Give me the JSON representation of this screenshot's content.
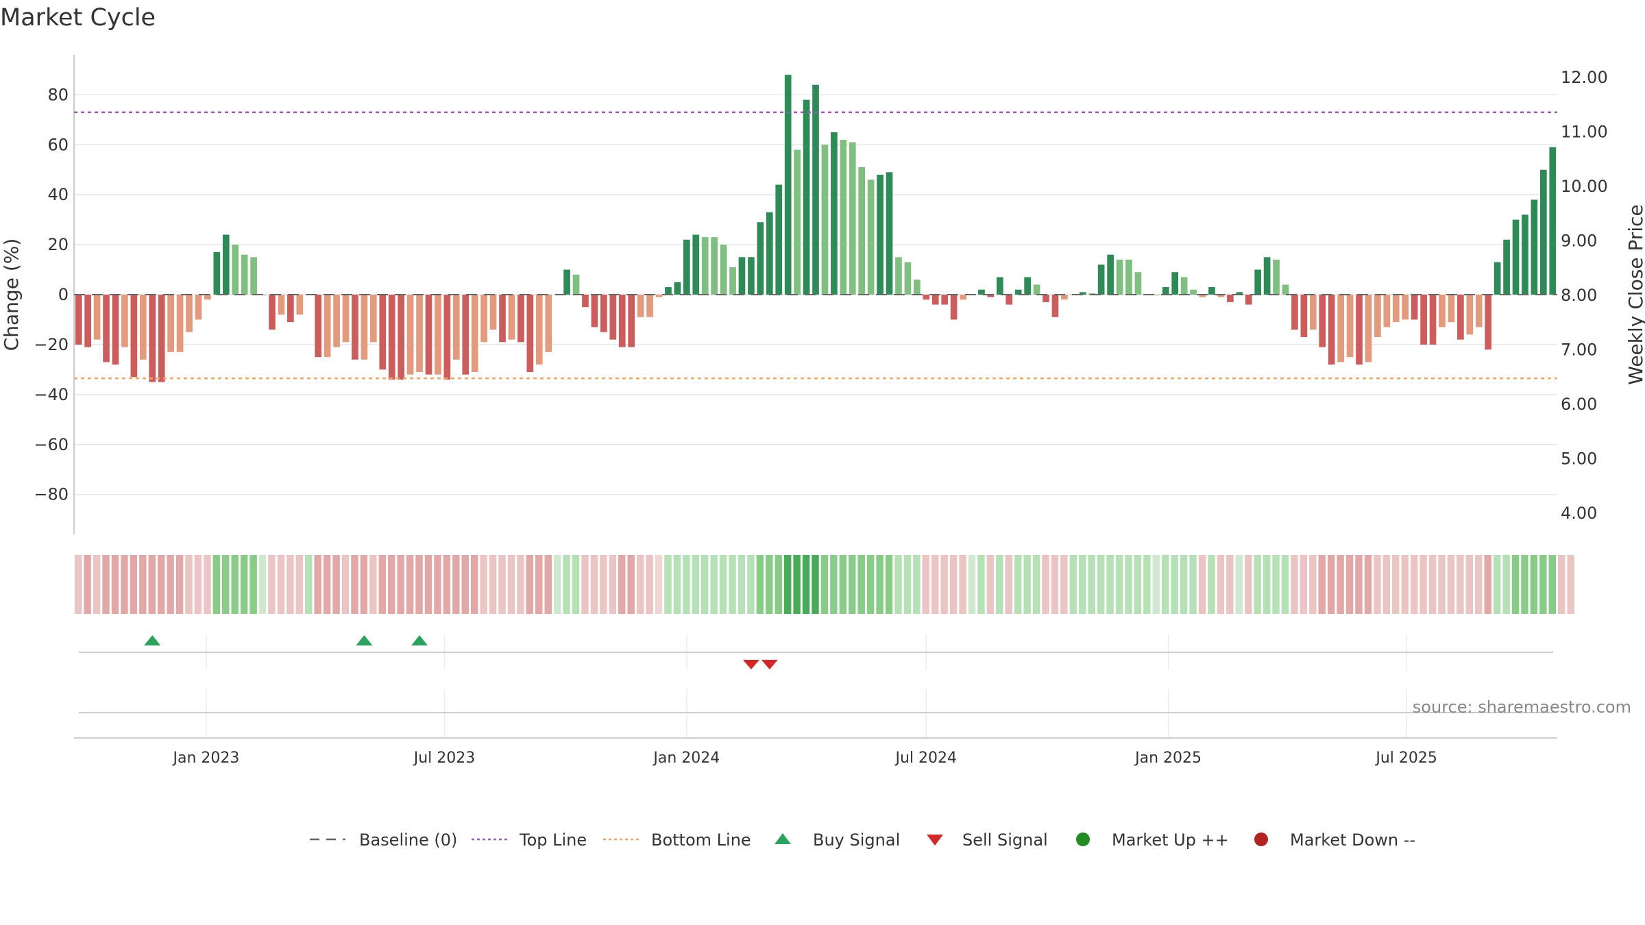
{
  "title": "Market Cycle",
  "source_note": "source: sharemaestro.com",
  "colors": {
    "strong_up": "#2e8b57",
    "weak_up": "#7fbf7f",
    "weak_down": "#e39a7d",
    "strong_down": "#cd5c5c",
    "top_line": "#9b59b6",
    "bottom_line": "#f4a460",
    "buy": "#2ca25f",
    "sell": "#d62728",
    "market_up": "#228b22",
    "market_down": "#b22222",
    "baseline": "#666666",
    "grid": "#e6e6e6"
  },
  "legend": [
    {
      "label": "Baseline (0)",
      "icon": "dash-line"
    },
    {
      "label": "Top Line",
      "icon": "dotted-purple-line"
    },
    {
      "label": "Bottom Line",
      "icon": "dotted-orange-line"
    },
    {
      "label": "Buy Signal",
      "icon": "triangle-up"
    },
    {
      "label": "Sell Signal",
      "icon": "triangle-down"
    },
    {
      "label": "Market Up ++",
      "icon": "circle-green"
    },
    {
      "label": "Market Down --",
      "icon": "circle-red"
    }
  ],
  "chart_data": {
    "type": "bar",
    "title": "Market Cycle",
    "ylabel": "Change (%)",
    "y2label": "Weekly Close Price",
    "ylim": [
      -96,
      96
    ],
    "yticks": [
      -80,
      -60,
      -40,
      -20,
      0,
      20,
      40,
      60,
      80
    ],
    "y2lim": [
      3.6,
      12.4
    ],
    "y2ticks": [
      "4.00",
      "5.00",
      "6.00",
      "7.00",
      "8.00",
      "9.00",
      "10.00",
      "11.00",
      "12.00"
    ],
    "top_line": 73,
    "bottom_line": -33.5,
    "grid": true,
    "legend_position": "bottom",
    "x_start": "2022-09-26",
    "x_interval": "weekly",
    "x_ticks": [
      "Jan 2023",
      "Jul 2023",
      "Jan 2024",
      "Jul 2024",
      "Jan 2025",
      "Jul 2025"
    ],
    "series": [
      {
        "values": [
          -20,
          -21,
          -18,
          -27,
          -28,
          -21,
          -33,
          -26,
          -35,
          -35,
          -23,
          -23,
          -15,
          -10,
          -2,
          17,
          24,
          20,
          16,
          15,
          0,
          -14,
          -8,
          -11,
          -8,
          0,
          -25,
          -25,
          -21,
          -19,
          -26,
          -26,
          -19,
          -30,
          -34,
          -34,
          -32,
          -31,
          -32,
          -32,
          -34,
          -26,
          -32,
          -31,
          -19,
          -14,
          -19,
          -18,
          -19,
          -31,
          -28,
          -23,
          0,
          10,
          8,
          -5,
          -13,
          -15,
          -18,
          -21,
          -21,
          -9,
          -9,
          -1,
          3,
          5,
          22,
          24,
          23,
          23,
          20,
          11,
          15,
          15,
          29,
          33,
          44,
          88,
          58,
          78,
          84,
          60,
          65,
          62,
          61,
          51,
          46,
          48,
          49,
          15,
          13,
          6,
          -2,
          -4,
          -4,
          -10,
          -2,
          0,
          2,
          -1,
          7,
          -4,
          2,
          7,
          4,
          -3,
          -9,
          -2,
          0,
          1,
          0.5,
          12,
          16,
          14,
          14,
          9,
          0,
          0,
          3,
          9,
          7,
          2,
          -1,
          3,
          -1,
          -3,
          1,
          -4,
          10,
          15,
          14,
          4,
          -14,
          -17,
          -14,
          -21,
          -28,
          -27,
          -25,
          -28,
          -27,
          -17,
          -13,
          -11,
          -10,
          -10,
          -20,
          -20,
          -13,
          -11,
          -18,
          -16,
          -13,
          -22,
          13,
          22,
          30,
          32,
          38,
          50,
          59
        ],
        "tiers": [
          3,
          3,
          2,
          3,
          3,
          2,
          3,
          2,
          3,
          3,
          2,
          2,
          2,
          2,
          2,
          1,
          1,
          0,
          0,
          0,
          0,
          3,
          2,
          3,
          2,
          0,
          3,
          2,
          2,
          2,
          3,
          2,
          2,
          3,
          3,
          3,
          2,
          2,
          3,
          2,
          3,
          2,
          3,
          2,
          2,
          2,
          3,
          2,
          3,
          3,
          2,
          2,
          0,
          1,
          0,
          3,
          3,
          3,
          3,
          3,
          3,
          2,
          2,
          2,
          1,
          1,
          1,
          1,
          0,
          0,
          0,
          0,
          1,
          1,
          1,
          1,
          1,
          1,
          0,
          1,
          1,
          0,
          1,
          0,
          0,
          0,
          0,
          1,
          1,
          0,
          0,
          0,
          3,
          3,
          3,
          3,
          2,
          0,
          1,
          3,
          1,
          3,
          1,
          1,
          0,
          3,
          3,
          2,
          0,
          1,
          0,
          1,
          1,
          0,
          0,
          0,
          0,
          0,
          1,
          1,
          0,
          0,
          2,
          1,
          2,
          3,
          1,
          3,
          1,
          1,
          0,
          0,
          3,
          3,
          2,
          3,
          3,
          2,
          2,
          3,
          2,
          2,
          2,
          2,
          2,
          3,
          3,
          3,
          2,
          2,
          3,
          2,
          2,
          3,
          1,
          1,
          1,
          1,
          1,
          1,
          1
        ]
      }
    ],
    "heat_levels": [
      1,
      1,
      1,
      1,
      1,
      1,
      1,
      1,
      1,
      1,
      1,
      1,
      1,
      1,
      1,
      2,
      2,
      2,
      2,
      2,
      0,
      1,
      1,
      1,
      1,
      1,
      1,
      1,
      1,
      1,
      1,
      1,
      1,
      1,
      1,
      1,
      1,
      1,
      1,
      1,
      1,
      1,
      1,
      1,
      1,
      1,
      1,
      1,
      1,
      1,
      1,
      1,
      0,
      1,
      1,
      1,
      1,
      1,
      1,
      1,
      1,
      1,
      1,
      0,
      1,
      1,
      1,
      1,
      1,
      1,
      1,
      1,
      1,
      1,
      2,
      2,
      2,
      3,
      3,
      3,
      3,
      2,
      2,
      2,
      2,
      2,
      2,
      2,
      2,
      1,
      1,
      1,
      1,
      1,
      1,
      1,
      1,
      0,
      1,
      1,
      1,
      1,
      1,
      1,
      1,
      1,
      1,
      1,
      1,
      1,
      1,
      1,
      1,
      1,
      1,
      1,
      1,
      0,
      1,
      1,
      1,
      1,
      1,
      1,
      1,
      1,
      0,
      1,
      1,
      1,
      1,
      1,
      1,
      1,
      1,
      1,
      1,
      1,
      1,
      1,
      1,
      1,
      1,
      1,
      1,
      1,
      1,
      1,
      1,
      1,
      1,
      1,
      1,
      1,
      1,
      1,
      2,
      2,
      2,
      2,
      2,
      2,
      2
    ],
    "buy_signals": [
      8,
      31,
      37
    ],
    "sell_signals": [
      73,
      75
    ]
  }
}
